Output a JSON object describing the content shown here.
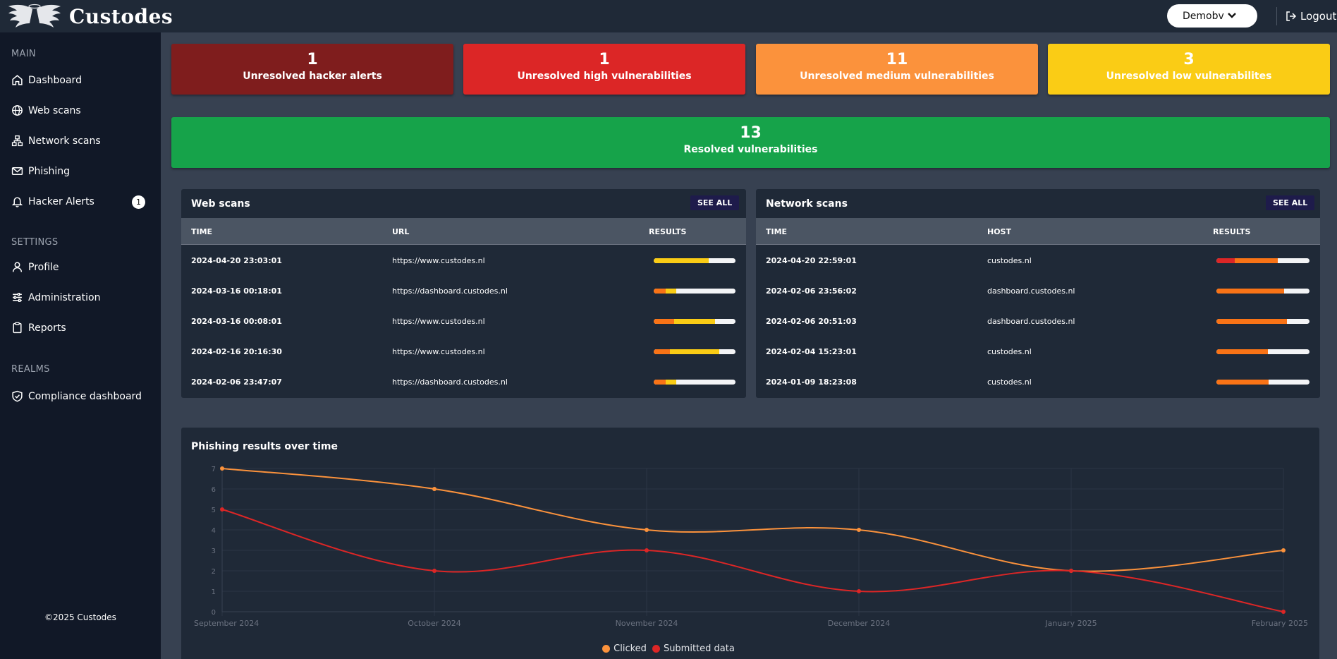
{
  "app": {
    "brand": "Custodes",
    "realm": "Demobv",
    "logout": "Logout"
  },
  "sidebar": {
    "sections": [
      {
        "title": "MAIN",
        "items": [
          {
            "label": "Dashboard",
            "icon": "home-icon"
          },
          {
            "label": "Web scans",
            "icon": "globe-icon"
          },
          {
            "label": "Network scans",
            "icon": "network-icon"
          },
          {
            "label": "Phishing",
            "icon": "mail-icon"
          },
          {
            "label": "Hacker Alerts",
            "icon": "bell-icon",
            "badge": "1"
          }
        ]
      },
      {
        "title": "SETTINGS",
        "items": [
          {
            "label": "Profile",
            "icon": "user-icon"
          },
          {
            "label": "Administration",
            "icon": "sliders-icon"
          },
          {
            "label": "Reports",
            "icon": "clipboard-icon"
          }
        ]
      },
      {
        "title": "REALMS",
        "items": [
          {
            "label": "Compliance dashboard",
            "icon": "shield-check-icon"
          }
        ]
      }
    ],
    "copyright": "©2025 Custodes"
  },
  "stats": [
    {
      "value": "1",
      "label": "Unresolved hacker alerts",
      "color": "#7f1d1d"
    },
    {
      "value": "1",
      "label": "Unresolved high vulnerabilities",
      "color": "#dc2626"
    },
    {
      "value": "11",
      "label": "Unresolved medium vulnerabilities",
      "color": "#fb923c"
    },
    {
      "value": "3",
      "label": "Unresolved low vulnerabilites",
      "color": "#facc15"
    }
  ],
  "resolved": {
    "value": "13",
    "label": "Resolved vulnerabilities",
    "color": "#16a34a"
  },
  "web_scans": {
    "title": "Web scans",
    "see_all": "SEE ALL",
    "columns": [
      "TIME",
      "URL",
      "RESULTS"
    ],
    "rows": [
      {
        "time": "2024-04-20 23:03:01",
        "url": "https://www.custodes.nl",
        "results": [
          0,
          0,
          0.67
        ]
      },
      {
        "time": "2024-03-16 00:18:01",
        "url": "https://dashboard.custodes.nl",
        "results": [
          0,
          0.15,
          0.13
        ]
      },
      {
        "time": "2024-03-16 00:08:01",
        "url": "https://www.custodes.nl",
        "results": [
          0,
          0.25,
          0.5
        ]
      },
      {
        "time": "2024-02-16 20:16:30",
        "url": "https://www.custodes.nl",
        "results": [
          0,
          0.2,
          0.6
        ]
      },
      {
        "time": "2024-02-06 23:47:07",
        "url": "https://dashboard.custodes.nl",
        "results": [
          0,
          0.15,
          0.13
        ]
      }
    ]
  },
  "network_scans": {
    "title": "Network scans",
    "see_all": "SEE ALL",
    "columns": [
      "TIME",
      "HOST",
      "RESULTS"
    ],
    "rows": [
      {
        "time": "2024-04-20 22:59:01",
        "host": "custodes.nl",
        "results": [
          0.2,
          0.46,
          0
        ]
      },
      {
        "time": "2024-02-06 23:56:02",
        "host": "dashboard.custodes.nl",
        "results": [
          0,
          0.73,
          0
        ]
      },
      {
        "time": "2024-02-06 20:51:03",
        "host": "dashboard.custodes.nl",
        "results": [
          0,
          0.76,
          0
        ]
      },
      {
        "time": "2024-02-04 15:23:01",
        "host": "custodes.nl",
        "results": [
          0,
          0.55,
          0
        ]
      },
      {
        "time": "2024-01-09 18:23:08",
        "host": "custodes.nl",
        "results": [
          0,
          0.56,
          0
        ]
      }
    ]
  },
  "result_colors": {
    "high": "#dc2626",
    "medium": "#f97316",
    "low": "#facc15",
    "none": "#f3f4f6"
  },
  "chart_data": {
    "type": "line",
    "title": "Phishing results over time",
    "categories": [
      "September 2024",
      "October 2024",
      "November 2024",
      "December 2024",
      "January 2025",
      "February 2025"
    ],
    "series": [
      {
        "name": "Clicked",
        "values": [
          7,
          6,
          4,
          4,
          2,
          3
        ],
        "color": "#fb923c"
      },
      {
        "name": "Submitted data",
        "values": [
          5,
          2,
          3,
          1,
          2,
          0
        ],
        "color": "#dc2626"
      }
    ],
    "ylim": [
      0,
      7
    ],
    "yticks": [
      0,
      1,
      2,
      3,
      4,
      5,
      6,
      7
    ],
    "grid": true,
    "legend": "bottom"
  }
}
